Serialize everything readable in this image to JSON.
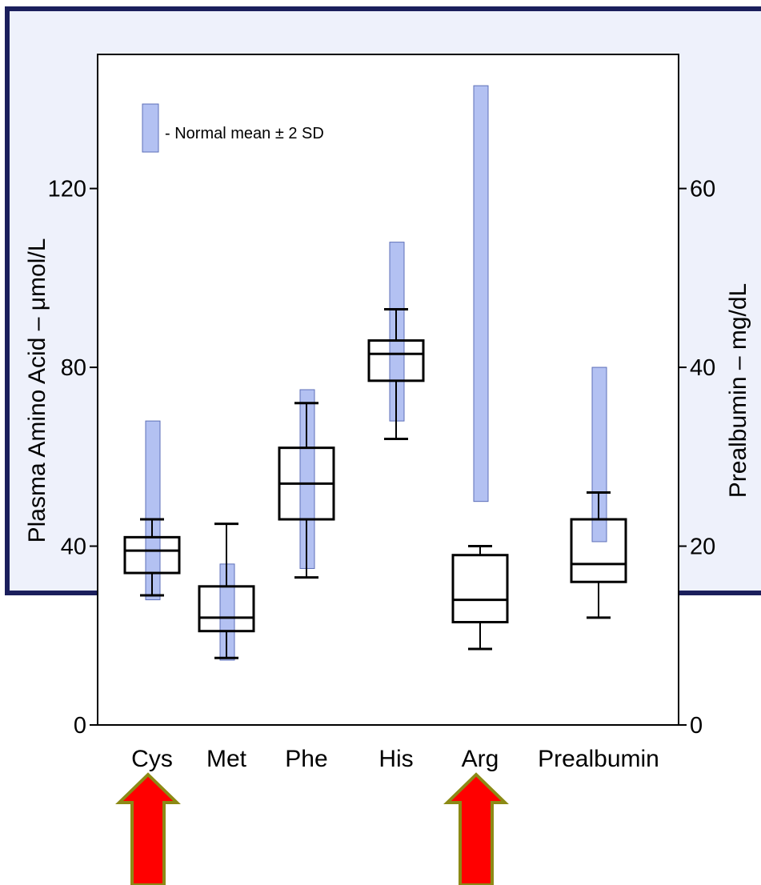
{
  "chart_data": {
    "type": "box",
    "ylabel_left": "Plasma Amino Acid – μmol/L",
    "ylabel_right": "Prealbumin – mg/dL",
    "yticks_left": [
      "0",
      "40",
      "80",
      "120"
    ],
    "yticks_right": [
      "0",
      "20",
      "40",
      "60"
    ],
    "ylim_left": [
      0,
      150
    ],
    "ylim_right": [
      0,
      75
    ],
    "legend_label": "- Normal mean ± 2 SD",
    "legend_position": "top-left",
    "colors": {
      "normal_range_fill": "#b3c1f2",
      "normal_range_stroke": "#5d6fb8",
      "box": "#000000",
      "arrow_fill": "#ff0000",
      "arrow_stroke": "#8c8a15",
      "frame": "#1b1f5c",
      "frame_bg": "#eef1fb"
    },
    "categories": [
      "Cys",
      "Met",
      "Phe",
      "His",
      "Arg",
      "Prealbumin"
    ],
    "boxes": [
      {
        "category": "Cys",
        "min": 29,
        "q1": 34,
        "median": 39,
        "q3": 42,
        "max": 46
      },
      {
        "category": "Met",
        "min": 15,
        "q1": 21,
        "median": 24,
        "q3": 31,
        "max": 45
      },
      {
        "category": "Phe",
        "min": 33,
        "q1": 46,
        "median": 54,
        "q3": 62,
        "max": 72
      },
      {
        "category": "His",
        "min": 64,
        "q1": 77,
        "median": 83,
        "q3": 86,
        "max": 93
      },
      {
        "category": "Arg",
        "min": 17,
        "q1": 23,
        "median": 28,
        "q3": 38,
        "max": 40
      },
      {
        "category": "Prealbumin",
        "min": 24,
        "q1": 32,
        "median": 36,
        "q3": 46,
        "max": 52
      }
    ],
    "normal_ranges": [
      {
        "category": "Cys",
        "low": 28,
        "high": 68
      },
      {
        "category": "Met",
        "low": 14.5,
        "high": 36
      },
      {
        "category": "Phe",
        "low": 35,
        "high": 75
      },
      {
        "category": "His",
        "low": 68,
        "high": 108
      },
      {
        "category": "Arg",
        "low": 50,
        "high": 143
      },
      {
        "category": "Prealbumin",
        "low": 41,
        "high": 80
      }
    ],
    "arrows_point_to": [
      "Cys",
      "Arg"
    ]
  }
}
